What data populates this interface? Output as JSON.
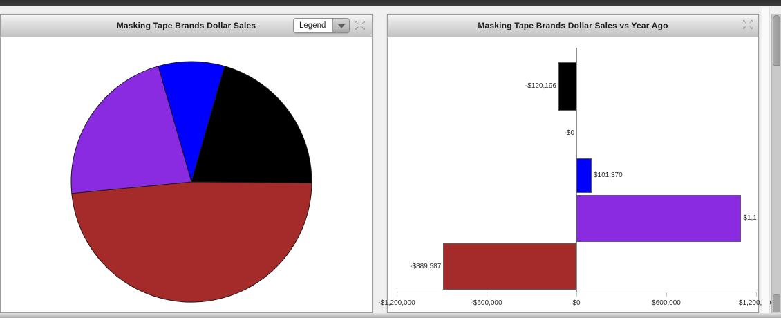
{
  "left_panel": {
    "title": "Masking Tape Brands Dollar Sales",
    "legend_dropdown": {
      "value": "Legend"
    }
  },
  "right_panel": {
    "title": "Masking Tape Brands Dollar Sales vs Year Ago"
  },
  "colors": {
    "blue": "#0000ff",
    "black": "#000000",
    "brown": "#a52a2a",
    "purple": "#8a2be2",
    "bar_border": "#5a5a5a",
    "pie_border": "#1a1a1a"
  },
  "chart_data": [
    {
      "type": "pie",
      "title": "Masking Tape Brands Dollar Sales",
      "legend": "collapsed-dropdown",
      "slices": [
        {
          "name": "blue-brand",
          "color": "#0000ff",
          "share_pct": 8.9,
          "start_deg": -16,
          "end_deg": 16
        },
        {
          "name": "black-brand",
          "color": "#000000",
          "share_pct": 20.7,
          "start_deg": 16,
          "end_deg": 90.5
        },
        {
          "name": "brown-brand",
          "color": "#a52a2a",
          "share_pct": 48.3,
          "start_deg": 90.5,
          "end_deg": 264.5
        },
        {
          "name": "purple-brand",
          "color": "#8a2be2",
          "share_pct": 22.1,
          "start_deg": 264.5,
          "end_deg": 344
        }
      ]
    },
    {
      "type": "bar",
      "orientation": "horizontal",
      "title": "Masking Tape Brands Dollar Sales vs Year Ago",
      "xlim": [
        -1200000,
        1200000
      ],
      "x_ticks": [
        {
          "value": -1200000,
          "label": "-$1,200,000"
        },
        {
          "value": -600000,
          "label": "-$600,000"
        },
        {
          "value": 0,
          "label": "$0"
        },
        {
          "value": 600000,
          "label": "$600,000"
        },
        {
          "value": 1200000,
          "label": "$1,200,000"
        }
      ],
      "bars": [
        {
          "name": "black-brand",
          "color": "#000000",
          "value": -120196,
          "label": "-$120,196"
        },
        {
          "name": "zero-brand",
          "color": null,
          "value": 0,
          "label": "-$0"
        },
        {
          "name": "blue-brand",
          "color": "#0000ff",
          "value": 101370,
          "label": "$101,370"
        },
        {
          "name": "purple-brand",
          "color": "#8a2be2",
          "value": 1100000,
          "label": "$1,1",
          "label_truncated": true
        },
        {
          "name": "brown-brand",
          "color": "#a52a2a",
          "value": -889587,
          "label": "-$889,587"
        }
      ]
    }
  ]
}
